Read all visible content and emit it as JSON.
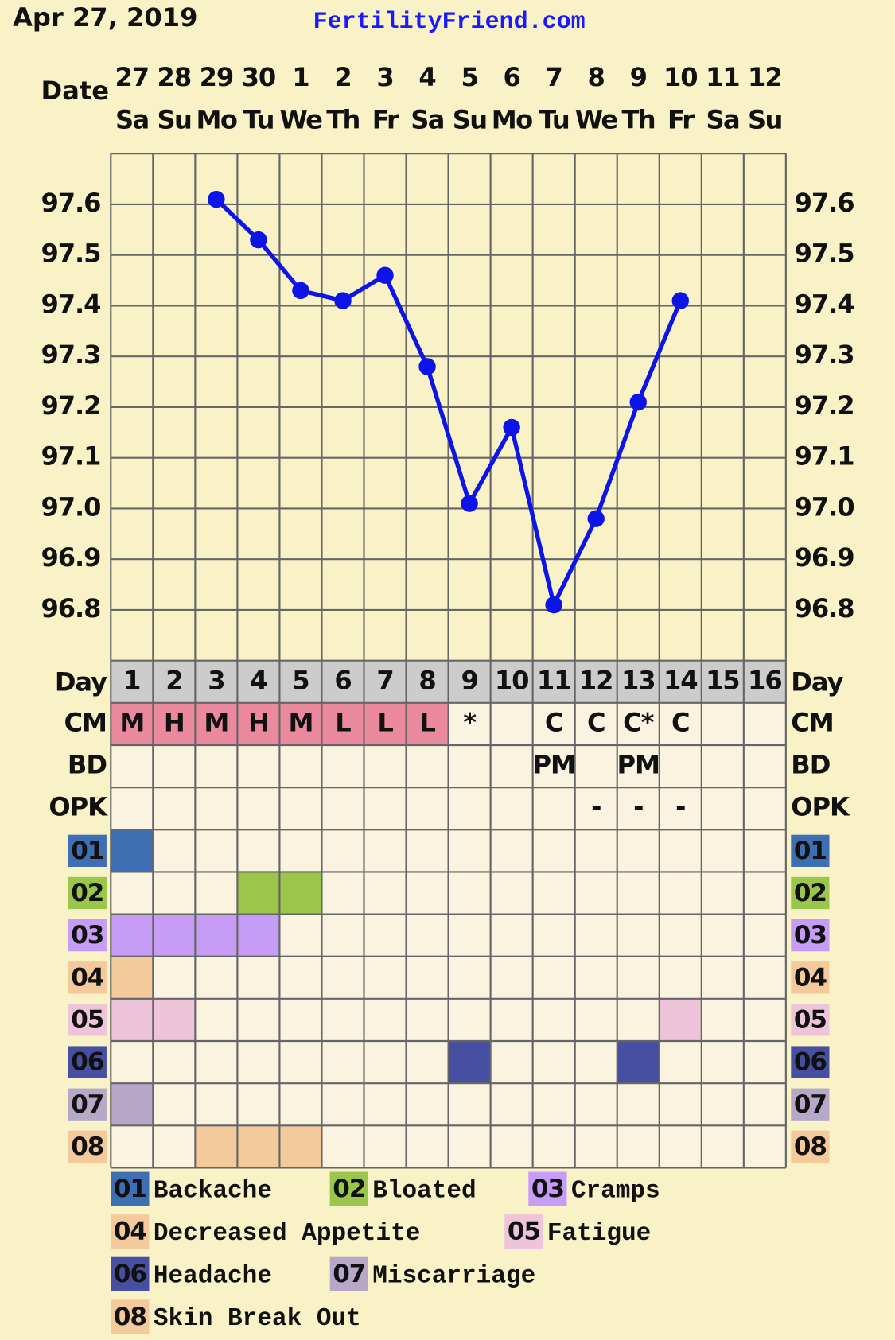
{
  "header": {
    "date": "Apr 27, 2019",
    "site": "FertilityFriend.com"
  },
  "chart_data": {
    "type": "line",
    "x_label": "Date",
    "categories": [
      "27",
      "28",
      "29",
      "30",
      "1",
      "2",
      "3",
      "4",
      "5",
      "6",
      "7",
      "8",
      "9",
      "10",
      "11",
      "12"
    ],
    "weekdays": [
      "Sa",
      "Su",
      "Mo",
      "Tu",
      "We",
      "Th",
      "Fr",
      "Sa",
      "Su",
      "Mo",
      "Tu",
      "We",
      "Th",
      "Fr",
      "Sa",
      "Su"
    ],
    "series": [
      {
        "color": "#0c14e8",
        "values": [
          null,
          null,
          97.61,
          97.53,
          97.43,
          97.41,
          97.46,
          97.28,
          97.01,
          97.16,
          96.81,
          96.98,
          97.21,
          97.41,
          null,
          null
        ]
      }
    ],
    "ylim": [
      96.7,
      97.7
    ],
    "yticks": [
      96.8,
      96.9,
      {
        "value": 97,
        "label": "97.0"
      },
      97.1,
      97.2,
      97.3,
      97.4,
      97.5,
      97.6
    ],
    "grid": true
  },
  "table": {
    "day_label": "Day",
    "days": [
      1,
      2,
      3,
      4,
      5,
      6,
      7,
      8,
      9,
      10,
      11,
      12,
      13,
      14,
      15,
      16
    ],
    "rows": [
      {
        "label": "CM",
        "cells": [
          "M",
          "H",
          "M",
          "H",
          "M",
          "L",
          "L",
          "L",
          "*",
          null,
          "C",
          "C",
          "C*",
          "C",
          null,
          null
        ],
        "highlight": {
          "color": "#eb8a9f",
          "days": [
            1,
            2,
            3,
            4,
            5,
            6,
            7,
            8
          ]
        }
      },
      {
        "label": "BD",
        "cells": [
          null,
          null,
          null,
          null,
          null,
          null,
          null,
          null,
          null,
          null,
          "PM",
          null,
          "PM",
          null,
          null,
          null
        ]
      },
      {
        "label": "OPK",
        "cells": [
          null,
          null,
          null,
          null,
          null,
          null,
          null,
          null,
          null,
          null,
          null,
          "-",
          "-",
          "-",
          null,
          null
        ]
      }
    ],
    "symptoms": [
      {
        "code": "01",
        "name": "Backache",
        "color": "#3d6fb2",
        "days": [
          1
        ]
      },
      {
        "code": "02",
        "name": "Bloated",
        "color": "#9bc64c",
        "days": [
          4,
          5
        ]
      },
      {
        "code": "03",
        "name": "Cramps",
        "color": "#c59cf6",
        "days": [
          1,
          2,
          3,
          4
        ]
      },
      {
        "code": "04",
        "name": "Decreased Appetite",
        "color": "#f4ca9c",
        "days": [
          1
        ]
      },
      {
        "code": "05",
        "name": "Fatigue",
        "color": "#eec4da",
        "days": [
          1,
          2,
          14
        ]
      },
      {
        "code": "06",
        "name": "Headache",
        "color": "#474fa2",
        "days": [
          9,
          13
        ]
      },
      {
        "code": "07",
        "name": "Miscarriage",
        "color": "#b7a8ca",
        "days": [
          1
        ]
      },
      {
        "code": "08",
        "name": "Skin Break Out",
        "color": "#f4ca9c",
        "days": [
          3,
          4,
          5
        ]
      }
    ]
  }
}
